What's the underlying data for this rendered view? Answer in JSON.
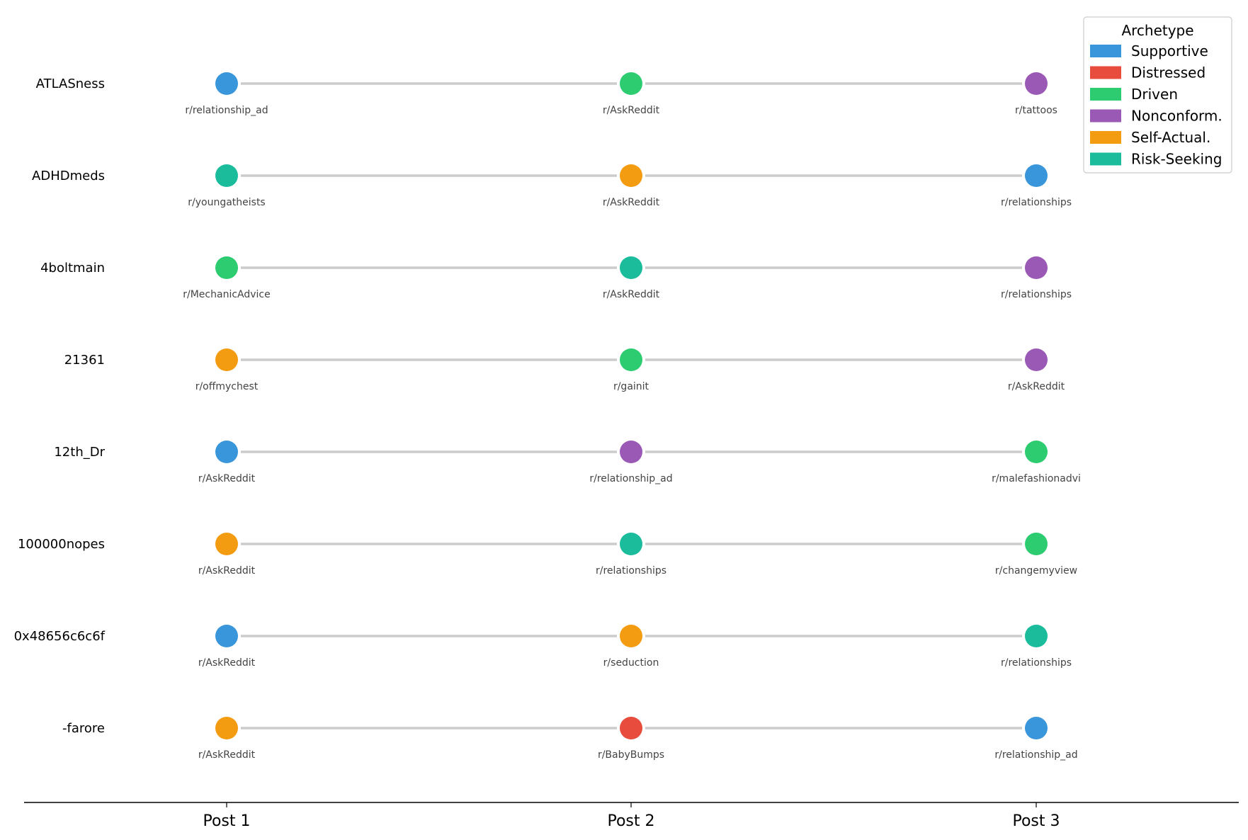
{
  "chart_data": {
    "type": "scatter",
    "x_categories": [
      "Post 1",
      "Post 2",
      "Post 3"
    ],
    "legend": {
      "title": "Archetype",
      "placement": "top-right",
      "entries": [
        {
          "name": "Supportive",
          "color": "#3a96db"
        },
        {
          "name": "Distressed",
          "color": "#e74c3c"
        },
        {
          "name": "Driven",
          "color": "#2ecc71"
        },
        {
          "name": "Nonconform.",
          "color": "#9b59b6"
        },
        {
          "name": "Self-Actual.",
          "color": "#f39c12"
        },
        {
          "name": "Risk-Seeking",
          "color": "#1abc9c"
        }
      ]
    },
    "connector_color": "#cccccc",
    "rows": [
      {
        "user": "ATLASness",
        "posts": [
          {
            "subreddit": "r/relationship_ad",
            "archetype": "Supportive"
          },
          {
            "subreddit": "r/AskReddit",
            "archetype": "Driven"
          },
          {
            "subreddit": "r/tattoos",
            "archetype": "Nonconform."
          }
        ]
      },
      {
        "user": "ADHDmeds",
        "posts": [
          {
            "subreddit": "r/youngatheists",
            "archetype": "Risk-Seeking"
          },
          {
            "subreddit": "r/AskReddit",
            "archetype": "Self-Actual."
          },
          {
            "subreddit": "r/relationships",
            "archetype": "Supportive"
          }
        ]
      },
      {
        "user": "4boltmain",
        "posts": [
          {
            "subreddit": "r/MechanicAdvice",
            "archetype": "Driven"
          },
          {
            "subreddit": "r/AskReddit",
            "archetype": "Risk-Seeking"
          },
          {
            "subreddit": "r/relationships",
            "archetype": "Nonconform."
          }
        ]
      },
      {
        "user": "21361",
        "posts": [
          {
            "subreddit": "r/offmychest",
            "archetype": "Self-Actual."
          },
          {
            "subreddit": "r/gainit",
            "archetype": "Driven"
          },
          {
            "subreddit": "r/AskReddit",
            "archetype": "Nonconform."
          }
        ]
      },
      {
        "user": "12th_Dr",
        "posts": [
          {
            "subreddit": "r/AskReddit",
            "archetype": "Supportive"
          },
          {
            "subreddit": "r/relationship_ad",
            "archetype": "Nonconform."
          },
          {
            "subreddit": "r/malefashionadvi",
            "archetype": "Driven"
          }
        ]
      },
      {
        "user": "100000nopes",
        "posts": [
          {
            "subreddit": "r/AskReddit",
            "archetype": "Self-Actual."
          },
          {
            "subreddit": "r/relationships",
            "archetype": "Risk-Seeking"
          },
          {
            "subreddit": "r/changemyview",
            "archetype": "Driven"
          }
        ]
      },
      {
        "user": "0x48656c6c6f",
        "posts": [
          {
            "subreddit": "r/AskReddit",
            "archetype": "Supportive"
          },
          {
            "subreddit": "r/seduction",
            "archetype": "Self-Actual."
          },
          {
            "subreddit": "r/relationships",
            "archetype": "Risk-Seeking"
          }
        ]
      },
      {
        "user": "-farore",
        "posts": [
          {
            "subreddit": "r/AskReddit",
            "archetype": "Self-Actual."
          },
          {
            "subreddit": "r/BabyBumps",
            "archetype": "Distressed"
          },
          {
            "subreddit": "r/relationship_ad",
            "archetype": "Supportive"
          }
        ]
      }
    ]
  }
}
